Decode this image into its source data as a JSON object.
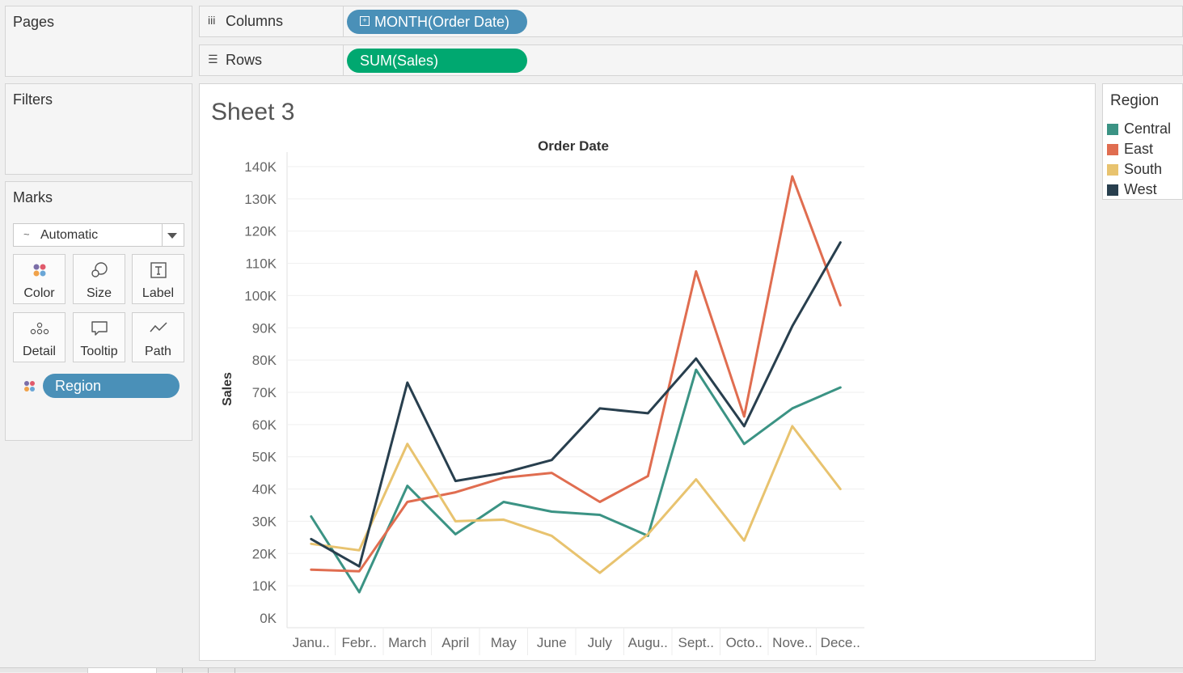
{
  "pages_card": {
    "title": "Pages"
  },
  "filters_card": {
    "title": "Filters"
  },
  "marks_card": {
    "title": "Marks",
    "mark_type": "Automatic",
    "buttons": [
      {
        "label": "Color",
        "icon": "color-dots-icon"
      },
      {
        "label": "Size",
        "icon": "size-circles-icon"
      },
      {
        "label": "Label",
        "icon": "text-label-icon"
      },
      {
        "label": "Detail",
        "icon": "detail-dots-icon"
      },
      {
        "label": "Tooltip",
        "icon": "tooltip-bubble-icon"
      },
      {
        "label": "Path",
        "icon": "path-line-icon"
      }
    ],
    "color_pill": "Region"
  },
  "columns_shelf": {
    "label": "Columns",
    "pill": "MONTH(Order Date)"
  },
  "rows_shelf": {
    "label": "Rows",
    "pill": "SUM(Sales)"
  },
  "sheet": {
    "title": "Sheet 3"
  },
  "legend": {
    "title": "Region",
    "items": [
      {
        "label": "Central",
        "color": "#3b9384"
      },
      {
        "label": "East",
        "color": "#e06d50"
      },
      {
        "label": "South",
        "color": "#e8c36f"
      },
      {
        "label": "West",
        "color": "#283f4e"
      }
    ]
  },
  "chart_data": {
    "type": "line",
    "title": "Order Date",
    "xlabel": "",
    "ylabel": "Sales",
    "categories": [
      "Janu..",
      "Febr..",
      "March",
      "April",
      "May",
      "June",
      "July",
      "Augu..",
      "Sept..",
      "Octo..",
      "Nove..",
      "Dece.."
    ],
    "y_ticks": [
      "0K",
      "10K",
      "20K",
      "30K",
      "40K",
      "50K",
      "60K",
      "70K",
      "80K",
      "90K",
      "100K",
      "110K",
      "120K",
      "130K",
      "140K"
    ],
    "ylim": [
      0,
      140000
    ],
    "grid": "horizontal",
    "series": [
      {
        "name": "Central",
        "color": "#3b9384",
        "values": [
          31500,
          8000,
          41000,
          26000,
          36000,
          33000,
          32000,
          25500,
          77000,
          54000,
          65000,
          71500
        ]
      },
      {
        "name": "East",
        "color": "#e06d50",
        "values": [
          15000,
          14500,
          36000,
          39000,
          43500,
          45000,
          36000,
          44000,
          107500,
          62500,
          137000,
          97000
        ]
      },
      {
        "name": "South",
        "color": "#e8c36f",
        "values": [
          23000,
          21000,
          54000,
          30000,
          30500,
          25500,
          14000,
          26000,
          43000,
          24000,
          59500,
          40000
        ]
      },
      {
        "name": "West",
        "color": "#283f4e",
        "values": [
          24500,
          16000,
          73000,
          42500,
          45000,
          49000,
          65000,
          63500,
          80500,
          59500,
          90500,
          116500
        ]
      }
    ]
  }
}
